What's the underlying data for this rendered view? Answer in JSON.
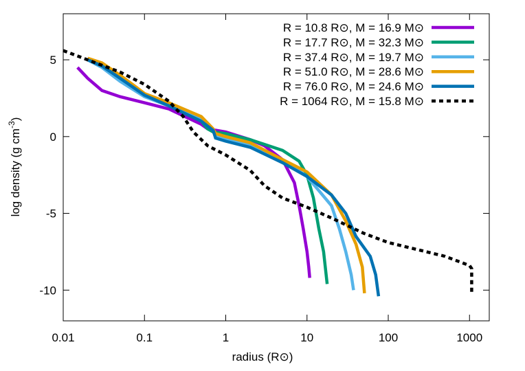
{
  "chart_data": {
    "type": "line",
    "xlabel": "radius (R⊙)",
    "ylabel": {
      "text": "log density (g cm",
      "superscript": "-3",
      "end": ")"
    },
    "xscale": "log",
    "xlim": [
      0.01,
      1750
    ],
    "xticks": [
      0.01,
      0.1,
      1,
      10,
      100,
      1000
    ],
    "ylim": [
      -12,
      8
    ],
    "yticks": [
      -10,
      -5,
      0,
      5
    ],
    "legend": "top-right",
    "series": [
      {
        "name": "R = 10.8 R⊙, M = 16.9 M⊙",
        "color": "#9400d3",
        "dash": false,
        "x": [
          0.015,
          0.02,
          0.03,
          0.05,
          0.1,
          0.2,
          0.5,
          0.6,
          1,
          2,
          3,
          5,
          7,
          8,
          9,
          10,
          10.5,
          10.8
        ],
        "values": [
          4.5,
          3.8,
          3.0,
          2.6,
          2.2,
          1.8,
          0.8,
          0.5,
          0.3,
          -0.2,
          -0.6,
          -1.5,
          -3,
          -4.5,
          -6,
          -7.5,
          -8.5,
          -9.2
        ]
      },
      {
        "name": "R = 17.7 R⊙, M = 32.3 M⊙",
        "color": "#009e73",
        "dash": false,
        "x": [
          0.02,
          0.03,
          0.05,
          0.08,
          0.1,
          0.2,
          0.5,
          0.6,
          0.7,
          1,
          2,
          5,
          8,
          10,
          12,
          14,
          16,
          17.7
        ],
        "values": [
          5.0,
          4.6,
          3.8,
          3.0,
          2.7,
          2.1,
          1.0,
          0.5,
          0.3,
          0.2,
          -0.2,
          -0.9,
          -1.6,
          -2.5,
          -4,
          -6,
          -7.5,
          -9.6
        ]
      },
      {
        "name": "R = 37.4 R⊙, M = 19.7 M⊙",
        "color": "#56b4e9",
        "dash": false,
        "x": [
          0.02,
          0.03,
          0.05,
          0.1,
          0.2,
          0.5,
          0.7,
          0.75,
          1,
          2,
          5,
          10,
          20,
          25,
          30,
          35,
          37.4
        ],
        "values": [
          5.0,
          4.5,
          3.6,
          2.6,
          2.0,
          1.1,
          0.4,
          0.1,
          -0.1,
          -0.5,
          -1.5,
          -2.6,
          -4.5,
          -6,
          -7.5,
          -9,
          -10
        ]
      },
      {
        "name": "R = 51.0 R⊙, M = 28.6 M⊙",
        "color": "#e69f00",
        "dash": false,
        "x": [
          0.02,
          0.03,
          0.05,
          0.08,
          0.1,
          0.2,
          0.5,
          0.7,
          0.75,
          1,
          2,
          5,
          10,
          20,
          30,
          40,
          48,
          51
        ],
        "values": [
          5.1,
          4.8,
          4.0,
          3.2,
          2.8,
          2.2,
          1.3,
          0.5,
          0.2,
          0,
          -0.4,
          -1.5,
          -2.3,
          -3.8,
          -5.5,
          -7,
          -8.5,
          -10.2
        ]
      },
      {
        "name": "R = 76.0 R⊙, M = 24.6 M⊙",
        "color": "#0072b2",
        "dash": false,
        "x": [
          0.02,
          0.03,
          0.05,
          0.1,
          0.2,
          0.5,
          0.7,
          0.75,
          1,
          2,
          5,
          10,
          20,
          30,
          40,
          60,
          70,
          76
        ],
        "values": [
          5.0,
          4.6,
          3.8,
          2.7,
          2.0,
          1.0,
          0.4,
          -0.1,
          -0.3,
          -0.7,
          -1.7,
          -2.6,
          -3.8,
          -5,
          -6.5,
          -7.8,
          -9,
          -10.4
        ]
      },
      {
        "name": "R = 1064 R⊙, M = 15.8 M⊙",
        "color": "#000000",
        "dash": true,
        "x": [
          0.01,
          0.02,
          0.05,
          0.1,
          0.2,
          0.3,
          0.4,
          0.6,
          1,
          2,
          3,
          5,
          10,
          20,
          50,
          100,
          500,
          1000,
          1064,
          1064
        ],
        "values": [
          5.6,
          5.0,
          4.2,
          3.4,
          2.3,
          1.3,
          0.3,
          -0.6,
          -1.2,
          -2.2,
          -3.2,
          -4.0,
          -4.6,
          -5.3,
          -6.3,
          -6.9,
          -7.8,
          -8.4,
          -8.6,
          -10.2
        ]
      }
    ]
  }
}
